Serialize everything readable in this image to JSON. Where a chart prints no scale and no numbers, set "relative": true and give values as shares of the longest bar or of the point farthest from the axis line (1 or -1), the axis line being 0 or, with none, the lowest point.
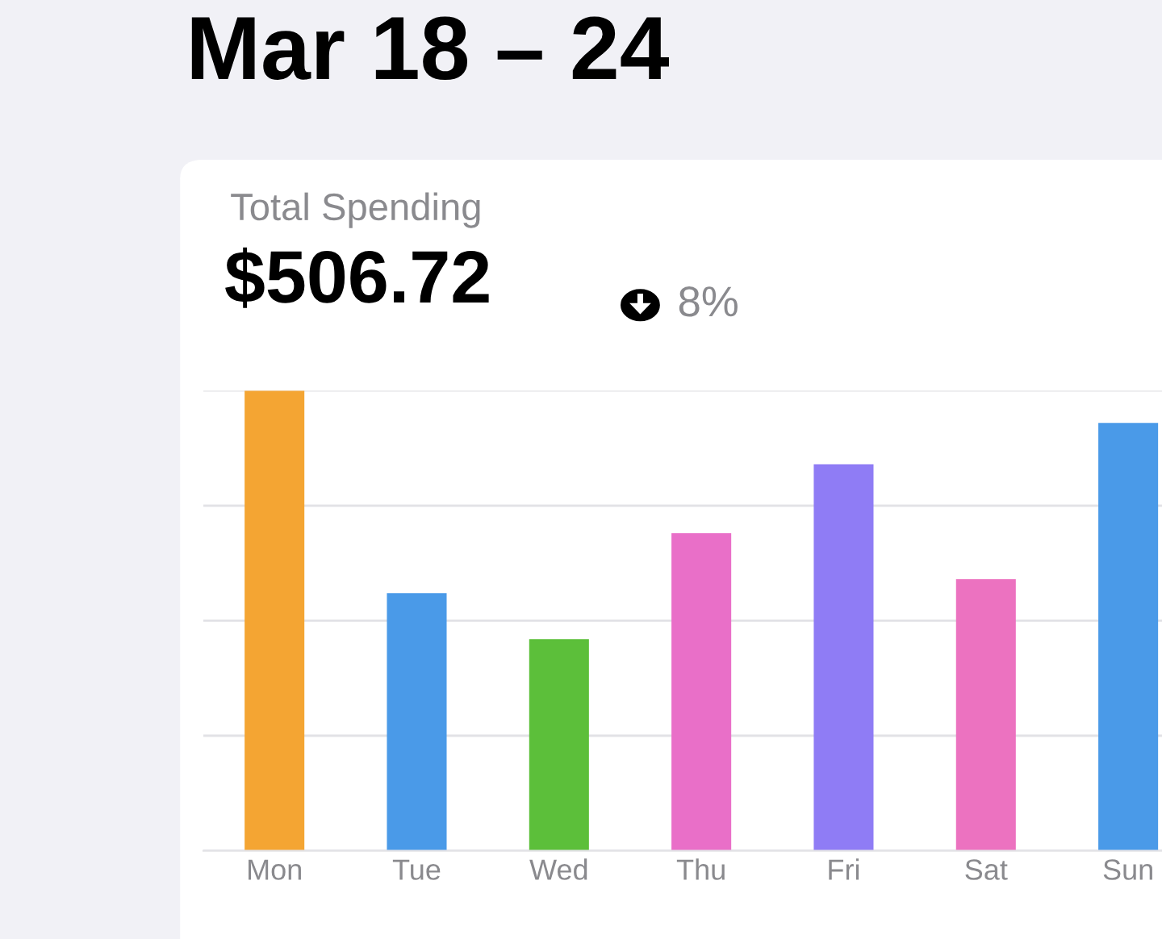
{
  "chart_data": {
    "type": "bar",
    "title": "Mar 18 – 24",
    "subtitle": "Total Spending",
    "annotations": [
      "$506.72",
      "8%"
    ],
    "categories": [
      "Mon",
      "Tue",
      "Wed",
      "Thu",
      "Fri",
      "Sat",
      "Sun"
    ],
    "values": [
      1,
      0.56,
      0.46,
      0.69,
      0.84,
      0.59,
      0.93
    ],
    "colors": [
      "#f4a533",
      "#4a9ae8",
      "#5cbf3a",
      "#e96fc8",
      "#8f7cf5",
      "#ec72c0",
      "#4a9ae8"
    ],
    "relative": true,
    "grid": "y",
    "tick_labels": "x"
  }
}
